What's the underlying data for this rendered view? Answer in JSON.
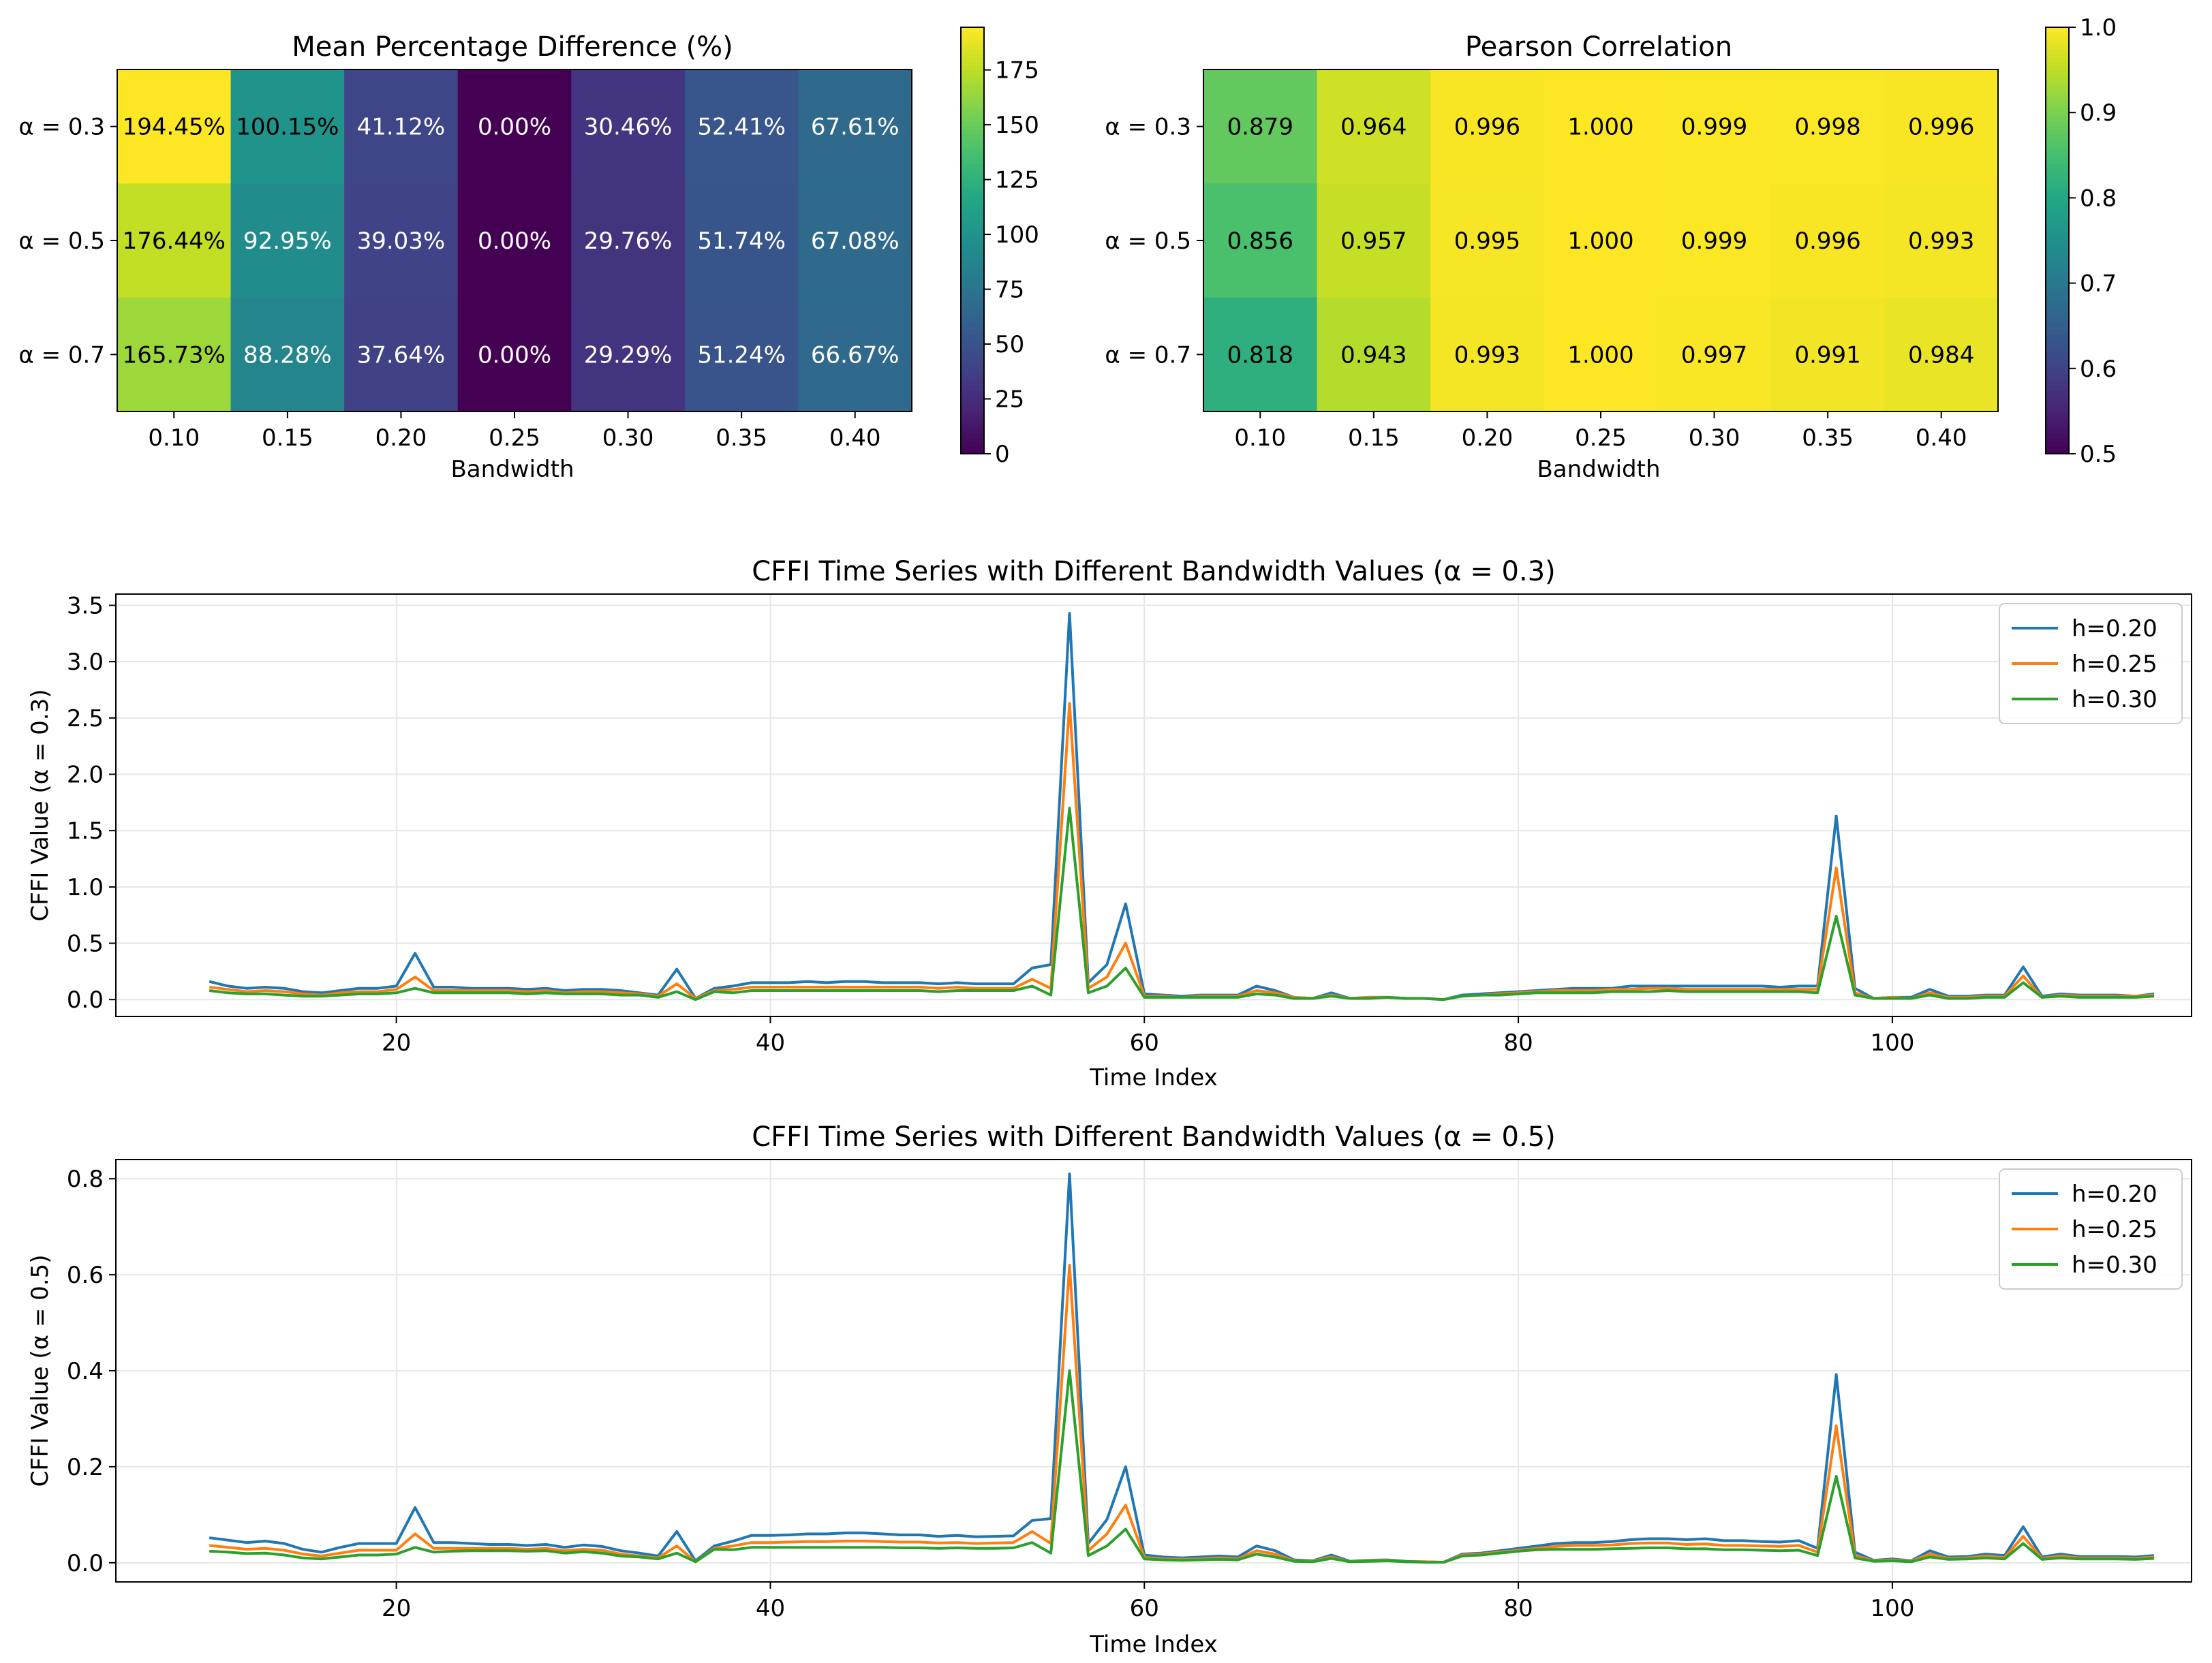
{
  "chart_data": [
    {
      "type": "heatmap",
      "title": "Mean Percentage Difference (%)",
      "xlabel": "Bandwidth",
      "x_categories": [
        "0.10",
        "0.15",
        "0.20",
        "0.25",
        "0.30",
        "0.35",
        "0.40"
      ],
      "y_categories": [
        "α = 0.3",
        "α = 0.5",
        "α = 0.7"
      ],
      "values": [
        [
          194.45,
          100.15,
          41.12,
          0.0,
          30.46,
          52.41,
          67.61
        ],
        [
          176.44,
          92.95,
          39.03,
          0.0,
          29.76,
          51.74,
          67.08
        ],
        [
          165.73,
          88.28,
          37.64,
          0.0,
          29.29,
          51.24,
          66.67
        ]
      ],
      "cell_labels": [
        [
          "194.45%",
          "100.15%",
          "41.12%",
          "0.00%",
          "30.46%",
          "52.41%",
          "67.61%"
        ],
        [
          "176.44%",
          "92.95%",
          "39.03%",
          "0.00%",
          "29.76%",
          "51.74%",
          "67.08%"
        ],
        [
          "165.73%",
          "88.28%",
          "37.64%",
          "0.00%",
          "29.29%",
          "51.24%",
          "66.67%"
        ]
      ],
      "colormap": "viridis",
      "colorbar": {
        "range": [
          0,
          194.45
        ],
        "ticks": [
          0,
          25,
          50,
          75,
          100,
          125,
          150,
          175
        ]
      }
    },
    {
      "type": "heatmap",
      "title": "Pearson Correlation",
      "xlabel": "Bandwidth",
      "x_categories": [
        "0.10",
        "0.15",
        "0.20",
        "0.25",
        "0.30",
        "0.35",
        "0.40"
      ],
      "y_categories": [
        "α = 0.3",
        "α = 0.5",
        "α = 0.7"
      ],
      "values": [
        [
          0.879,
          0.964,
          0.996,
          1.0,
          0.999,
          0.998,
          0.996
        ],
        [
          0.856,
          0.957,
          0.995,
          1.0,
          0.999,
          0.996,
          0.993
        ],
        [
          0.818,
          0.943,
          0.993,
          1.0,
          0.997,
          0.991,
          0.984
        ]
      ],
      "cell_labels": [
        [
          "0.879",
          "0.964",
          "0.996",
          "1.000",
          "0.999",
          "0.998",
          "0.996"
        ],
        [
          "0.856",
          "0.957",
          "0.995",
          "1.000",
          "0.999",
          "0.996",
          "0.993"
        ],
        [
          "0.818",
          "0.943",
          "0.993",
          "1.000",
          "0.997",
          "0.991",
          "0.984"
        ]
      ],
      "colormap": "viridis",
      "colorbar": {
        "range": [
          0.5,
          1.0
        ],
        "ticks": [
          "0.5",
          "0.6",
          "0.7",
          "0.8",
          "0.9",
          "1.0"
        ]
      }
    },
    {
      "type": "line",
      "title": "CFFI Time Series with Different Bandwidth Values (α = 0.3)",
      "xlabel": "Time Index",
      "ylabel": "CFFI Value (α = 0.3)",
      "xlim": [
        5,
        116
      ],
      "ylim": [
        -0.15,
        3.6
      ],
      "xticks": [
        20,
        40,
        60,
        80,
        100
      ],
      "yticks": [
        "0.0",
        "0.5",
        "1.0",
        "1.5",
        "2.0",
        "2.5",
        "3.0",
        "3.5"
      ],
      "grid": true,
      "legend": "top-right",
      "x_start": 10,
      "series": [
        {
          "name": "h=0.20",
          "color": "#1f77b4",
          "values": [
            0.16,
            0.12,
            0.1,
            0.11,
            0.1,
            0.07,
            0.06,
            0.08,
            0.1,
            0.1,
            0.12,
            0.41,
            0.11,
            0.11,
            0.1,
            0.1,
            0.1,
            0.09,
            0.1,
            0.08,
            0.09,
            0.09,
            0.08,
            0.06,
            0.04,
            0.27,
            0.01,
            0.1,
            0.12,
            0.15,
            0.15,
            0.15,
            0.16,
            0.15,
            0.16,
            0.16,
            0.15,
            0.15,
            0.15,
            0.14,
            0.15,
            0.14,
            0.14,
            0.14,
            0.28,
            0.31,
            3.43,
            0.15,
            0.31,
            0.85,
            0.05,
            0.04,
            0.03,
            0.04,
            0.04,
            0.04,
            0.12,
            0.08,
            0.02,
            0.01,
            0.06,
            0.01,
            0.02,
            0.02,
            0.01,
            0.01,
            0.0,
            0.04,
            0.05,
            0.06,
            0.07,
            0.08,
            0.09,
            0.1,
            0.1,
            0.1,
            0.12,
            0.12,
            0.12,
            0.12,
            0.12,
            0.12,
            0.12,
            0.12,
            0.11,
            0.12,
            0.12,
            1.63,
            0.1,
            0.01,
            0.02,
            0.02,
            0.09,
            0.03,
            0.03,
            0.04,
            0.04,
            0.29,
            0.03,
            0.05,
            0.04,
            0.04,
            0.04,
            0.03,
            0.05
          ]
        },
        {
          "name": "h=0.25",
          "color": "#ff7f0e",
          "values": [
            0.11,
            0.09,
            0.07,
            0.08,
            0.07,
            0.05,
            0.04,
            0.06,
            0.07,
            0.07,
            0.09,
            0.2,
            0.08,
            0.08,
            0.08,
            0.08,
            0.08,
            0.07,
            0.08,
            0.06,
            0.07,
            0.07,
            0.06,
            0.05,
            0.03,
            0.14,
            0.01,
            0.08,
            0.09,
            0.11,
            0.11,
            0.11,
            0.11,
            0.11,
            0.11,
            0.11,
            0.11,
            0.11,
            0.11,
            0.1,
            0.11,
            0.1,
            0.1,
            0.1,
            0.18,
            0.1,
            2.63,
            0.1,
            0.2,
            0.5,
            0.03,
            0.03,
            0.02,
            0.03,
            0.03,
            0.03,
            0.08,
            0.06,
            0.02,
            0.01,
            0.04,
            0.01,
            0.02,
            0.02,
            0.01,
            0.01,
            0.0,
            0.03,
            0.04,
            0.05,
            0.06,
            0.07,
            0.08,
            0.08,
            0.08,
            0.09,
            0.09,
            0.1,
            0.1,
            0.09,
            0.09,
            0.09,
            0.09,
            0.09,
            0.09,
            0.09,
            0.09,
            1.17,
            0.06,
            0.01,
            0.02,
            0.01,
            0.06,
            0.02,
            0.02,
            0.03,
            0.03,
            0.21,
            0.02,
            0.04,
            0.03,
            0.03,
            0.03,
            0.03,
            0.04
          ]
        },
        {
          "name": "h=0.30",
          "color": "#2ca02c",
          "values": [
            0.08,
            0.06,
            0.05,
            0.05,
            0.04,
            0.03,
            0.03,
            0.04,
            0.05,
            0.05,
            0.06,
            0.1,
            0.06,
            0.06,
            0.06,
            0.06,
            0.06,
            0.05,
            0.06,
            0.05,
            0.05,
            0.05,
            0.04,
            0.04,
            0.02,
            0.07,
            0.0,
            0.07,
            0.06,
            0.08,
            0.08,
            0.08,
            0.08,
            0.08,
            0.08,
            0.08,
            0.08,
            0.08,
            0.08,
            0.07,
            0.08,
            0.08,
            0.08,
            0.08,
            0.12,
            0.04,
            1.7,
            0.06,
            0.12,
            0.28,
            0.02,
            0.02,
            0.02,
            0.02,
            0.02,
            0.02,
            0.05,
            0.04,
            0.01,
            0.01,
            0.03,
            0.01,
            0.01,
            0.02,
            0.01,
            0.01,
            0.0,
            0.03,
            0.04,
            0.04,
            0.05,
            0.06,
            0.06,
            0.06,
            0.06,
            0.07,
            0.07,
            0.07,
            0.08,
            0.07,
            0.07,
            0.07,
            0.07,
            0.07,
            0.07,
            0.07,
            0.06,
            0.74,
            0.04,
            0.01,
            0.01,
            0.01,
            0.04,
            0.01,
            0.01,
            0.02,
            0.02,
            0.15,
            0.02,
            0.03,
            0.02,
            0.02,
            0.02,
            0.02,
            0.03
          ]
        }
      ]
    },
    {
      "type": "line",
      "title": "CFFI Time Series with Different Bandwidth Values (α = 0.5)",
      "xlabel": "Time Index",
      "ylabel": "CFFI Value (α = 0.5)",
      "xlim": [
        5,
        116
      ],
      "ylim": [
        -0.04,
        0.84
      ],
      "xticks": [
        20,
        40,
        60,
        80,
        100
      ],
      "yticks": [
        "0.0",
        "0.2",
        "0.4",
        "0.6",
        "0.8"
      ],
      "grid": true,
      "legend": "top-right",
      "x_start": 10,
      "series": [
        {
          "name": "h=0.20",
          "color": "#1f77b4",
          "values": [
            0.052,
            0.047,
            0.042,
            0.045,
            0.04,
            0.028,
            0.022,
            0.032,
            0.04,
            0.04,
            0.04,
            0.115,
            0.042,
            0.042,
            0.04,
            0.038,
            0.038,
            0.036,
            0.038,
            0.032,
            0.037,
            0.034,
            0.025,
            0.02,
            0.014,
            0.065,
            0.004,
            0.035,
            0.045,
            0.057,
            0.057,
            0.058,
            0.06,
            0.06,
            0.062,
            0.062,
            0.06,
            0.058,
            0.058,
            0.055,
            0.057,
            0.054,
            0.055,
            0.056,
            0.088,
            0.092,
            0.81,
            0.04,
            0.09,
            0.2,
            0.016,
            0.012,
            0.01,
            0.012,
            0.014,
            0.012,
            0.035,
            0.025,
            0.006,
            0.004,
            0.016,
            0.003,
            0.005,
            0.006,
            0.003,
            0.002,
            0.001,
            0.018,
            0.02,
            0.025,
            0.03,
            0.035,
            0.04,
            0.042,
            0.042,
            0.044,
            0.048,
            0.05,
            0.05,
            0.048,
            0.05,
            0.046,
            0.046,
            0.044,
            0.043,
            0.046,
            0.03,
            0.392,
            0.022,
            0.005,
            0.008,
            0.004,
            0.025,
            0.012,
            0.013,
            0.018,
            0.015,
            0.075,
            0.012,
            0.018,
            0.013,
            0.013,
            0.013,
            0.012,
            0.015
          ]
        },
        {
          "name": "h=0.25",
          "color": "#ff7f0e",
          "values": [
            0.036,
            0.032,
            0.028,
            0.03,
            0.026,
            0.018,
            0.014,
            0.02,
            0.026,
            0.026,
            0.026,
            0.06,
            0.03,
            0.03,
            0.03,
            0.03,
            0.03,
            0.028,
            0.03,
            0.025,
            0.028,
            0.026,
            0.018,
            0.014,
            0.01,
            0.035,
            0.002,
            0.03,
            0.035,
            0.042,
            0.042,
            0.043,
            0.044,
            0.044,
            0.045,
            0.045,
            0.044,
            0.043,
            0.043,
            0.041,
            0.042,
            0.04,
            0.041,
            0.042,
            0.065,
            0.04,
            0.62,
            0.025,
            0.06,
            0.12,
            0.011,
            0.008,
            0.007,
            0.008,
            0.01,
            0.008,
            0.025,
            0.018,
            0.004,
            0.003,
            0.012,
            0.002,
            0.004,
            0.005,
            0.002,
            0.002,
            0.001,
            0.016,
            0.018,
            0.022,
            0.026,
            0.03,
            0.034,
            0.036,
            0.036,
            0.037,
            0.04,
            0.041,
            0.041,
            0.038,
            0.039,
            0.036,
            0.036,
            0.035,
            0.034,
            0.036,
            0.022,
            0.285,
            0.015,
            0.004,
            0.006,
            0.003,
            0.018,
            0.009,
            0.01,
            0.014,
            0.011,
            0.055,
            0.009,
            0.014,
            0.01,
            0.01,
            0.01,
            0.009,
            0.012
          ]
        },
        {
          "name": "h=0.30",
          "color": "#2ca02c",
          "values": [
            0.024,
            0.022,
            0.019,
            0.02,
            0.016,
            0.01,
            0.008,
            0.012,
            0.016,
            0.016,
            0.018,
            0.032,
            0.022,
            0.024,
            0.025,
            0.025,
            0.025,
            0.024,
            0.025,
            0.02,
            0.023,
            0.02,
            0.014,
            0.012,
            0.008,
            0.02,
            0.002,
            0.028,
            0.027,
            0.032,
            0.032,
            0.032,
            0.032,
            0.032,
            0.032,
            0.032,
            0.032,
            0.031,
            0.031,
            0.03,
            0.031,
            0.03,
            0.03,
            0.031,
            0.042,
            0.02,
            0.4,
            0.015,
            0.035,
            0.07,
            0.008,
            0.006,
            0.005,
            0.006,
            0.007,
            0.006,
            0.018,
            0.012,
            0.003,
            0.002,
            0.009,
            0.002,
            0.003,
            0.004,
            0.002,
            0.001,
            0.001,
            0.014,
            0.016,
            0.02,
            0.024,
            0.027,
            0.028,
            0.028,
            0.028,
            0.029,
            0.03,
            0.031,
            0.031,
            0.029,
            0.029,
            0.027,
            0.027,
            0.026,
            0.025,
            0.026,
            0.015,
            0.18,
            0.01,
            0.003,
            0.004,
            0.002,
            0.012,
            0.007,
            0.008,
            0.01,
            0.008,
            0.04,
            0.007,
            0.01,
            0.008,
            0.008,
            0.008,
            0.007,
            0.009
          ]
        }
      ]
    }
  ]
}
